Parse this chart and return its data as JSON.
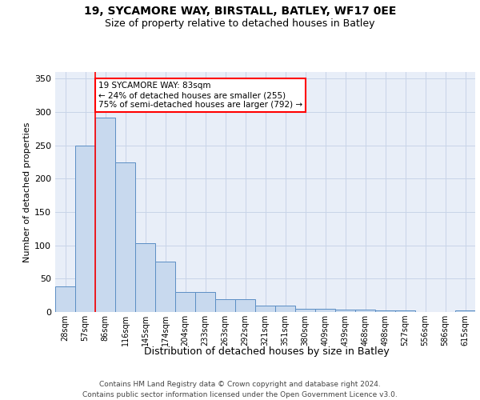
{
  "title1": "19, SYCAMORE WAY, BIRSTALL, BATLEY, WF17 0EE",
  "title2": "Size of property relative to detached houses in Batley",
  "xlabel": "Distribution of detached houses by size in Batley",
  "ylabel": "Number of detached properties",
  "bar_color": "#c8d9ee",
  "bar_edge_color": "#5b8ec4",
  "categories": [
    "28sqm",
    "57sqm",
    "86sqm",
    "116sqm",
    "145sqm",
    "174sqm",
    "204sqm",
    "233sqm",
    "263sqm",
    "292sqm",
    "321sqm",
    "351sqm",
    "380sqm",
    "409sqm",
    "439sqm",
    "468sqm",
    "498sqm",
    "527sqm",
    "556sqm",
    "586sqm",
    "615sqm"
  ],
  "values": [
    38,
    250,
    292,
    225,
    103,
    76,
    30,
    30,
    19,
    19,
    10,
    10,
    5,
    5,
    4,
    4,
    3,
    3,
    0,
    0,
    3
  ],
  "ylim": [
    0,
    360
  ],
  "yticks": [
    0,
    50,
    100,
    150,
    200,
    250,
    300,
    350
  ],
  "annotation_text": "19 SYCAMORE WAY: 83sqm\n← 24% of detached houses are smaller (255)\n75% of semi-detached houses are larger (792) →",
  "annotation_box_color": "white",
  "annotation_box_edge_color": "red",
  "red_line_x": 1.5,
  "grid_color": "#c8d4e8",
  "background_color": "#e8eef8",
  "footer1": "Contains HM Land Registry data © Crown copyright and database right 2024.",
  "footer2": "Contains public sector information licensed under the Open Government Licence v3.0."
}
